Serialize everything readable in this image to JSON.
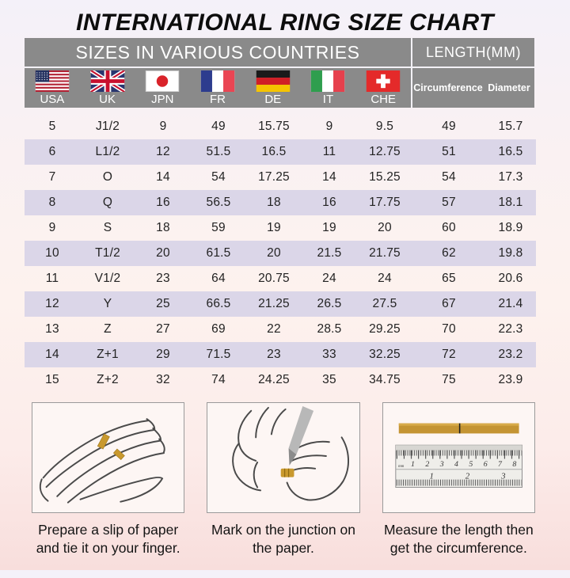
{
  "title": "INTERNATIONAL RING SIZE CHART",
  "chart_data": {
    "type": "table",
    "title": "INTERNATIONAL RING SIZE CHART",
    "group_headers": {
      "countries": "SIZES IN VARIOUS COUNTRIES",
      "length": "LENGTH(MM)"
    },
    "columns": [
      "USA",
      "UK",
      "JPN",
      "FR",
      "DE",
      "IT",
      "CHE",
      "Circumference",
      "Diameter"
    ],
    "rows": [
      [
        "5",
        "J1/2",
        "9",
        "49",
        "15.75",
        "9",
        "9.5",
        "49",
        "15.7"
      ],
      [
        "6",
        "L1/2",
        "12",
        "51.5",
        "16.5",
        "11",
        "12.75",
        "51",
        "16.5"
      ],
      [
        "7",
        "O",
        "14",
        "54",
        "17.25",
        "14",
        "15.25",
        "54",
        "17.3"
      ],
      [
        "8",
        "Q",
        "16",
        "56.5",
        "18",
        "16",
        "17.75",
        "57",
        "18.1"
      ],
      [
        "9",
        "S",
        "18",
        "59",
        "19",
        "19",
        "20",
        "60",
        "18.9"
      ],
      [
        "10",
        "T1/2",
        "20",
        "61.5",
        "20",
        "21.5",
        "21.75",
        "62",
        "19.8"
      ],
      [
        "11",
        "V1/2",
        "23",
        "64",
        "20.75",
        "24",
        "24",
        "65",
        "20.6"
      ],
      [
        "12",
        "Y",
        "25",
        "66.5",
        "21.25",
        "26.5",
        "27.5",
        "67",
        "21.4"
      ],
      [
        "13",
        "Z",
        "27",
        "69",
        "22",
        "28.5",
        "29.25",
        "70",
        "22.3"
      ],
      [
        "14",
        "Z+1",
        "29",
        "71.5",
        "23",
        "33",
        "32.25",
        "72",
        "23.2"
      ],
      [
        "15",
        "Z+2",
        "32",
        "74",
        "24.25",
        "35",
        "34.75",
        "75",
        "23.9"
      ]
    ]
  },
  "flags": [
    {
      "label": "USA",
      "icon": "usa-flag-icon"
    },
    {
      "label": "UK",
      "icon": "uk-flag-icon"
    },
    {
      "label": "JPN",
      "icon": "japan-flag-icon"
    },
    {
      "label": "FR",
      "icon": "france-flag-icon"
    },
    {
      "label": "DE",
      "icon": "germany-flag-icon"
    },
    {
      "label": "IT",
      "icon": "italy-flag-icon"
    },
    {
      "label": "CHE",
      "icon": "switzerland-flag-icon"
    }
  ],
  "instructions": [
    {
      "caption": "Prepare a slip of paper and tie it on your finger.",
      "illustration": "hand-with-paper-strip"
    },
    {
      "caption": "Mark on the junction on the paper.",
      "illustration": "mark-junction-with-pen"
    },
    {
      "caption": "Measure the length then get the circumference.",
      "illustration": "ruler-measuring-strip"
    }
  ],
  "colors": {
    "header_gray": "#8a8a8a",
    "stripe_lavender": "#dbd6e8",
    "paper_strip_gold": "#c9992e",
    "background_top": "#f4f1f9",
    "background_bottom": "#f8dedc"
  }
}
